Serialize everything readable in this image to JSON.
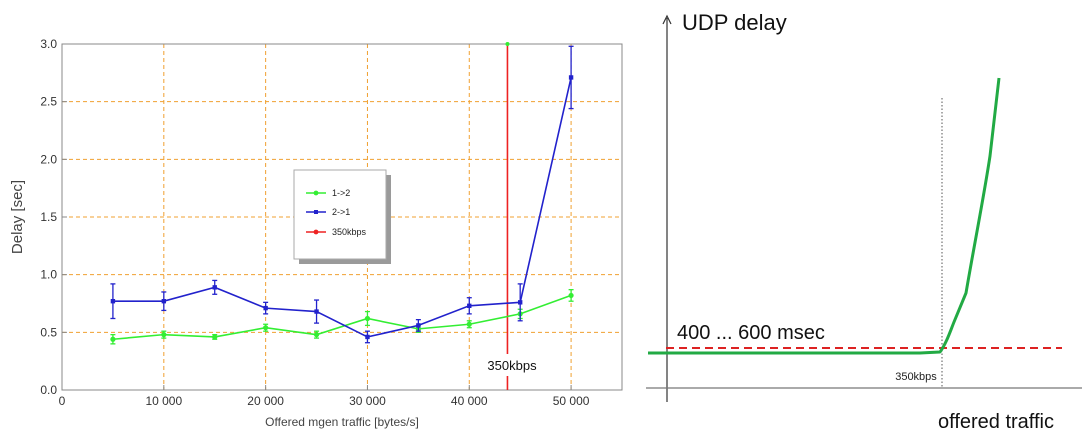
{
  "chart_data": [
    {
      "type": "line",
      "xlabel": "Offered mgen traffic [bytes/s]",
      "ylabel": "Delay [sec]",
      "xlim": [
        0,
        55000
      ],
      "ylim": [
        0,
        3.0
      ],
      "x_ticks": [
        0,
        10000,
        20000,
        30000,
        40000,
        50000
      ],
      "x_tick_labels": [
        "0",
        "10 000",
        "20 000",
        "30 000",
        "40 000",
        "50 000"
      ],
      "y_ticks": [
        0,
        0.5,
        1.0,
        1.5,
        2.0,
        2.5,
        3.0
      ],
      "y_tick_labels": [
        "0.0",
        "0.5",
        "1.0",
        "1.5",
        "2.0",
        "2.5",
        "3.0"
      ],
      "grid": true,
      "legend_position": "center",
      "x": [
        5000,
        10000,
        15000,
        20000,
        25000,
        30000,
        35000,
        40000,
        45000,
        50000
      ],
      "series": [
        {
          "name": "1->2",
          "color": "#33ee33",
          "marker": "circle",
          "values": [
            0.44,
            0.48,
            0.46,
            0.54,
            0.48,
            0.62,
            0.53,
            0.57,
            0.66,
            0.82
          ],
          "err": [
            0.04,
            0.03,
            0.02,
            0.03,
            0.03,
            0.06,
            0.03,
            0.03,
            0.04,
            0.05
          ]
        },
        {
          "name": "2->1",
          "color": "#2222cc",
          "marker": "square",
          "values": [
            0.77,
            0.77,
            0.89,
            0.71,
            0.68,
            0.46,
            0.56,
            0.73,
            0.76,
            2.71
          ],
          "err": [
            0.15,
            0.08,
            0.06,
            0.05,
            0.1,
            0.05,
            0.05,
            0.07,
            0.16,
            0.27
          ]
        }
      ],
      "vline": {
        "name": "350kbps",
        "label": "350kbps",
        "x": 43750,
        "ymax": 3.0,
        "color": "#ee2222"
      }
    },
    {
      "type": "line",
      "xlabel": "offered traffic",
      "ylabel": "UDP delay",
      "annotation": "400 ... 600 msec",
      "threshold_label": "350kbps",
      "grid": false,
      "curve_color": "#22aa44",
      "threshold_line_color": "#dd2222",
      "note": "schematic sketch without numeric axes"
    }
  ]
}
